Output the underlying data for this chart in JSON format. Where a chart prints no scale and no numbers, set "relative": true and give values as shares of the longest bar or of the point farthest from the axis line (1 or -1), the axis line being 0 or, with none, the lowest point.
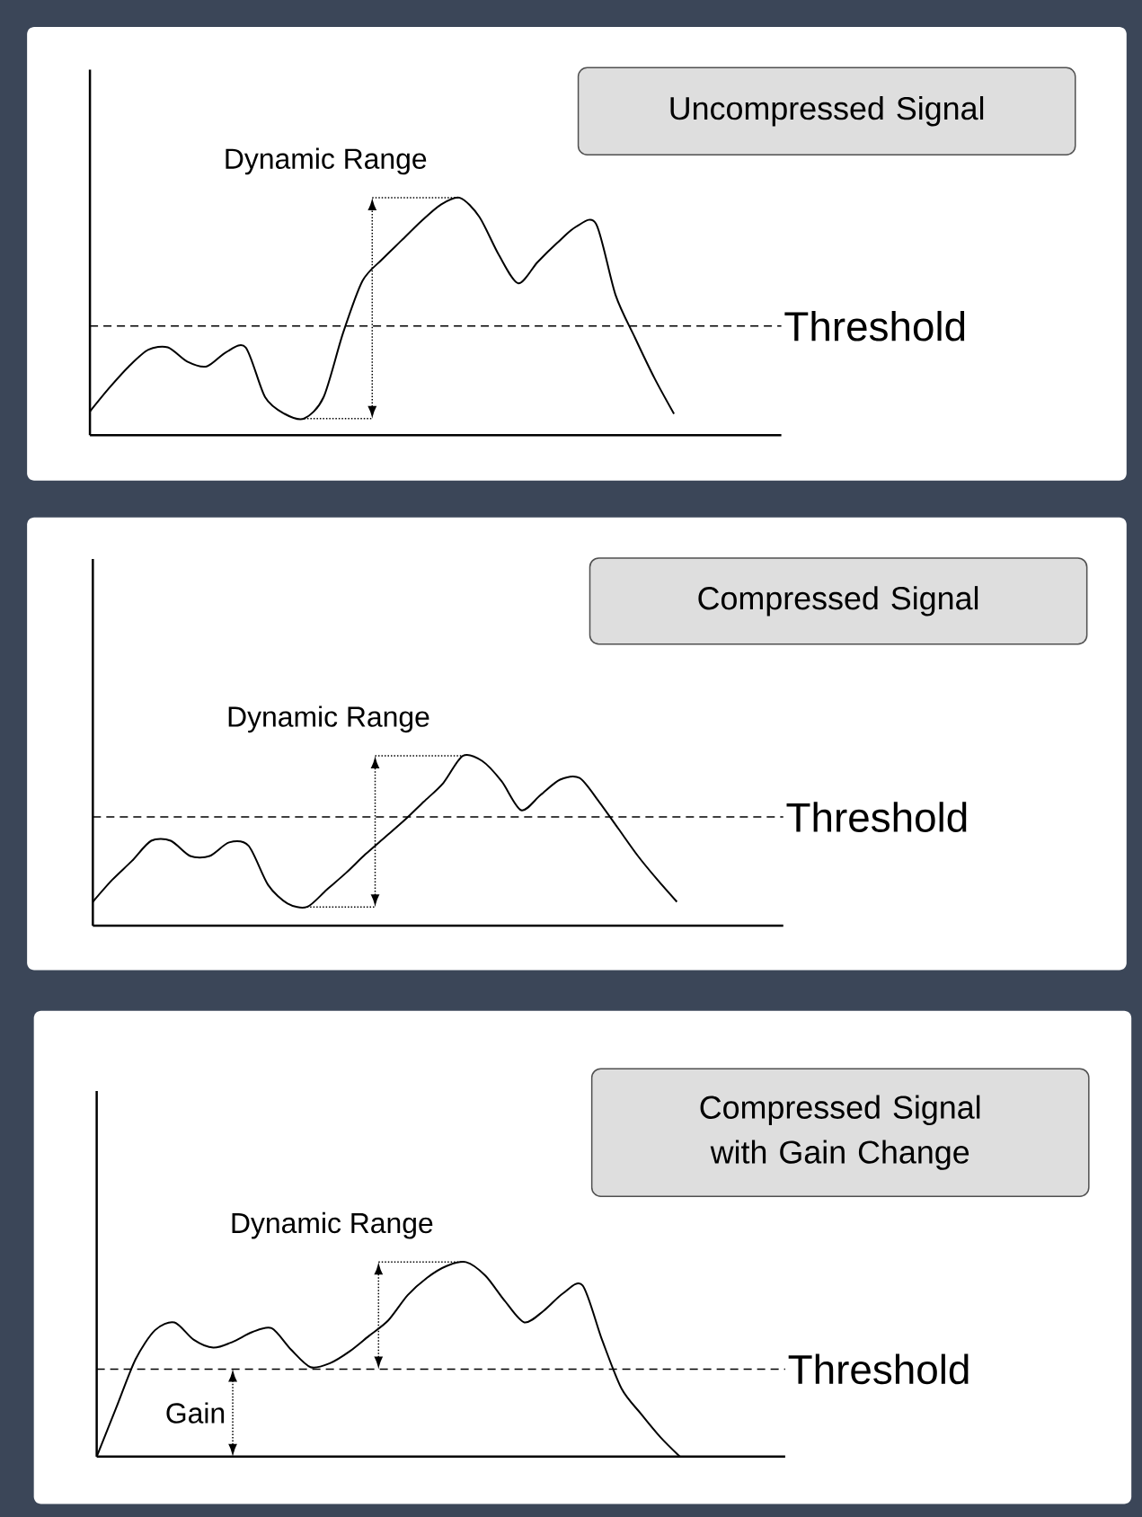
{
  "chart_data": [
    {
      "type": "line",
      "title": "Uncompressed Signal",
      "relative": true,
      "categories": [
        null,
        null,
        null,
        null,
        null,
        null,
        null,
        null,
        null,
        null,
        null,
        null,
        null,
        null,
        null,
        null,
        null,
        null,
        null,
        null,
        null,
        null,
        null,
        null,
        null,
        null,
        null,
        null,
        null,
        null,
        null
      ],
      "series": [
        {
          "color": "#000000",
          "values": [
            0.1,
            0.2,
            0.29,
            0.36,
            0.37,
            0.31,
            0.29,
            0.35,
            0.37,
            0.16,
            0.09,
            0.07,
            0.16,
            0.43,
            0.65,
            0.74,
            0.82,
            0.9,
            0.97,
            1.0,
            0.92,
            0.76,
            0.64,
            0.73,
            0.81,
            0.88,
            0.89,
            0.59,
            0.41,
            0.24,
            0.09
          ]
        }
      ],
      "ref_lines": [
        {
          "axis": "y",
          "value": 0.46,
          "label": "Threshold",
          "line_style": "dashed"
        }
      ],
      "annotations": [
        "Dynamic Range"
      ]
    },
    {
      "type": "line",
      "title": "Compressed Signal",
      "relative": true,
      "categories": [
        null,
        null,
        null,
        null,
        null,
        null,
        null,
        null,
        null,
        null,
        null,
        null,
        null,
        null,
        null,
        null,
        null,
        null,
        null,
        null,
        null,
        null,
        null,
        null,
        null,
        null,
        null,
        null,
        null,
        null,
        null
      ],
      "series": [
        {
          "color": "#000000",
          "values": [
            0.14,
            0.27,
            0.38,
            0.5,
            0.5,
            0.41,
            0.41,
            0.49,
            0.47,
            0.24,
            0.13,
            0.11,
            0.21,
            0.31,
            0.42,
            0.52,
            0.62,
            0.73,
            0.84,
            1.0,
            0.97,
            0.85,
            0.68,
            0.77,
            0.86,
            0.87,
            0.73,
            0.57,
            0.41,
            0.27,
            0.14
          ]
        }
      ],
      "ref_lines": [
        {
          "axis": "y",
          "value": 0.64,
          "label": "Threshold",
          "line_style": "dashed"
        }
      ],
      "annotations": [
        "Dynamic Range"
      ]
    },
    {
      "type": "line",
      "title": "Compressed Signal with Gain Change",
      "relative": true,
      "categories": [
        null,
        null,
        null,
        null,
        null,
        null,
        null,
        null,
        null,
        null,
        null,
        null,
        null,
        null,
        null,
        null,
        null,
        null,
        null,
        null,
        null,
        null,
        null,
        null,
        null,
        null,
        null,
        null,
        null,
        null,
        null
      ],
      "series": [
        {
          "color": "#000000",
          "values": [
            0,
            0.25,
            0.5,
            0.65,
            0.69,
            0.6,
            0.56,
            0.59,
            0.64,
            0.66,
            0.55,
            0.46,
            0.48,
            0.54,
            0.62,
            0.7,
            0.83,
            0.92,
            0.98,
            1.0,
            0.93,
            0.8,
            0.69,
            0.75,
            0.84,
            0.88,
            0.6,
            0.35,
            0.22,
            0.1,
            0
          ]
        }
      ],
      "ref_lines": [
        {
          "axis": "y",
          "value": 0.45,
          "label": "Threshold",
          "line_style": "dashed"
        }
      ],
      "annotations": [
        "Dynamic Range",
        "Gain"
      ]
    }
  ]
}
